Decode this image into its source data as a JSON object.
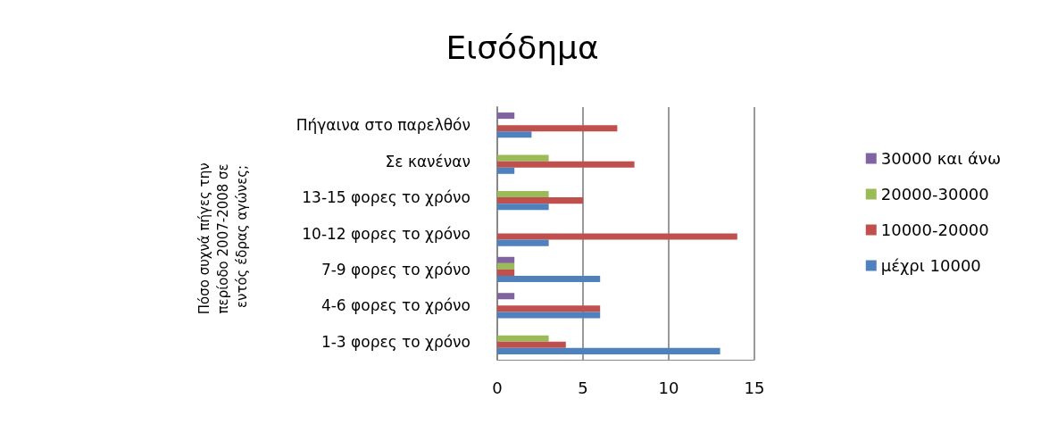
{
  "chart_data": {
    "type": "bar",
    "orientation": "horizontal",
    "title": "Εισόδημα",
    "ylabel": "Πόσο συχνά πήγες την περίοδο 2007-2008 σε εντός έδρας αγώνες;",
    "categories": [
      "Πήγαινα στο παρελθόν",
      "Σε κανέναν",
      "13-15 φορες το χρόνο",
      "10-12 φορες το χρόνο",
      "7-9 φορες το χρόνο",
      "4-6 φορες το χρόνο",
      "1-3 φορες το χρόνο"
    ],
    "series": [
      {
        "name": "30000 και άνω",
        "color": "#8064a2",
        "values": [
          1,
          0,
          0,
          0,
          1,
          1,
          0
        ]
      },
      {
        "name": "20000-30000",
        "color": "#9bbb59",
        "values": [
          0,
          3,
          3,
          0,
          1,
          0,
          3
        ]
      },
      {
        "name": "10000-20000",
        "color": "#c0504d",
        "values": [
          7,
          8,
          5,
          14,
          1,
          6,
          4
        ]
      },
      {
        "name": "μέχρι 10000",
        "color": "#4f81bd",
        "values": [
          2,
          1,
          3,
          3,
          6,
          6,
          13
        ]
      }
    ],
    "xlim": [
      0,
      15
    ],
    "xticks": [
      0,
      5,
      10,
      15
    ],
    "grid": "x",
    "legend": "right"
  }
}
